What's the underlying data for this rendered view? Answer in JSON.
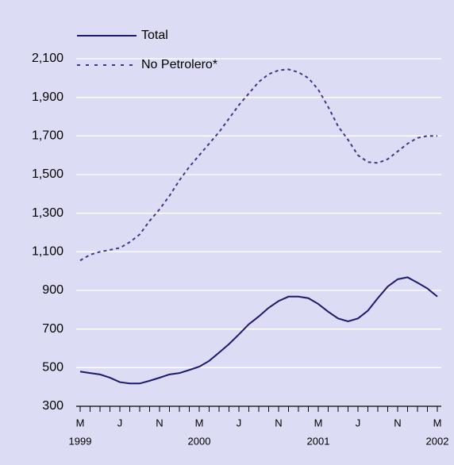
{
  "chart_data": {
    "type": "line",
    "categories": [
      "M",
      null,
      null,
      null,
      "J",
      null,
      null,
      null,
      "N",
      null,
      null,
      null,
      "M",
      null,
      null,
      null,
      "J",
      null,
      null,
      null,
      "N",
      null,
      null,
      null,
      "M",
      null,
      null,
      null,
      "J",
      null,
      null,
      null,
      "N",
      null,
      null,
      null,
      "M"
    ],
    "category_years": [
      "1999",
      null,
      null,
      null,
      null,
      null,
      null,
      null,
      null,
      null,
      null,
      null,
      "2000",
      null,
      null,
      null,
      null,
      null,
      null,
      null,
      null,
      null,
      null,
      null,
      "2001",
      null,
      null,
      null,
      null,
      null,
      null,
      null,
      null,
      null,
      null,
      null,
      "2002"
    ],
    "series": [
      {
        "name": "Total",
        "color": "#1a1a6e",
        "dash": false,
        "values": [
          480,
          472,
          465,
          448,
          425,
          418,
          418,
          432,
          448,
          465,
          472,
          488,
          505,
          535,
          578,
          622,
          672,
          725,
          765,
          810,
          845,
          868,
          868,
          860,
          830,
          790,
          755,
          740,
          755,
          795,
          860,
          920,
          958,
          968,
          940,
          910,
          868
        ]
      },
      {
        "name": "No Petrolero*",
        "color": "#3a3a8a",
        "dash": true,
        "values": [
          1055,
          1085,
          1100,
          1110,
          1120,
          1150,
          1190,
          1260,
          1320,
          1390,
          1470,
          1540,
          1600,
          1660,
          1720,
          1790,
          1860,
          1920,
          1980,
          2020,
          2040,
          2045,
          2030,
          2000,
          1940,
          1850,
          1750,
          1680,
          1600,
          1565,
          1560,
          1580,
          1620,
          1660,
          1690,
          1700,
          1700
        ]
      }
    ],
    "ylim": [
      300,
      2100
    ],
    "yticks": [
      300,
      500,
      700,
      900,
      {
        "value": 1100,
        "label": "1,100"
      },
      {
        "value": 1300,
        "label": "1,300"
      },
      {
        "value": 1500,
        "label": "1,500"
      },
      {
        "value": 1700,
        "label": "1,700"
      },
      {
        "value": 1900,
        "label": "1,900"
      },
      {
        "value": 2100,
        "label": "2,100"
      }
    ],
    "grid": true,
    "legend": "top-left",
    "background": "#dcdcf4",
    "grid_color": "#ffffff"
  }
}
